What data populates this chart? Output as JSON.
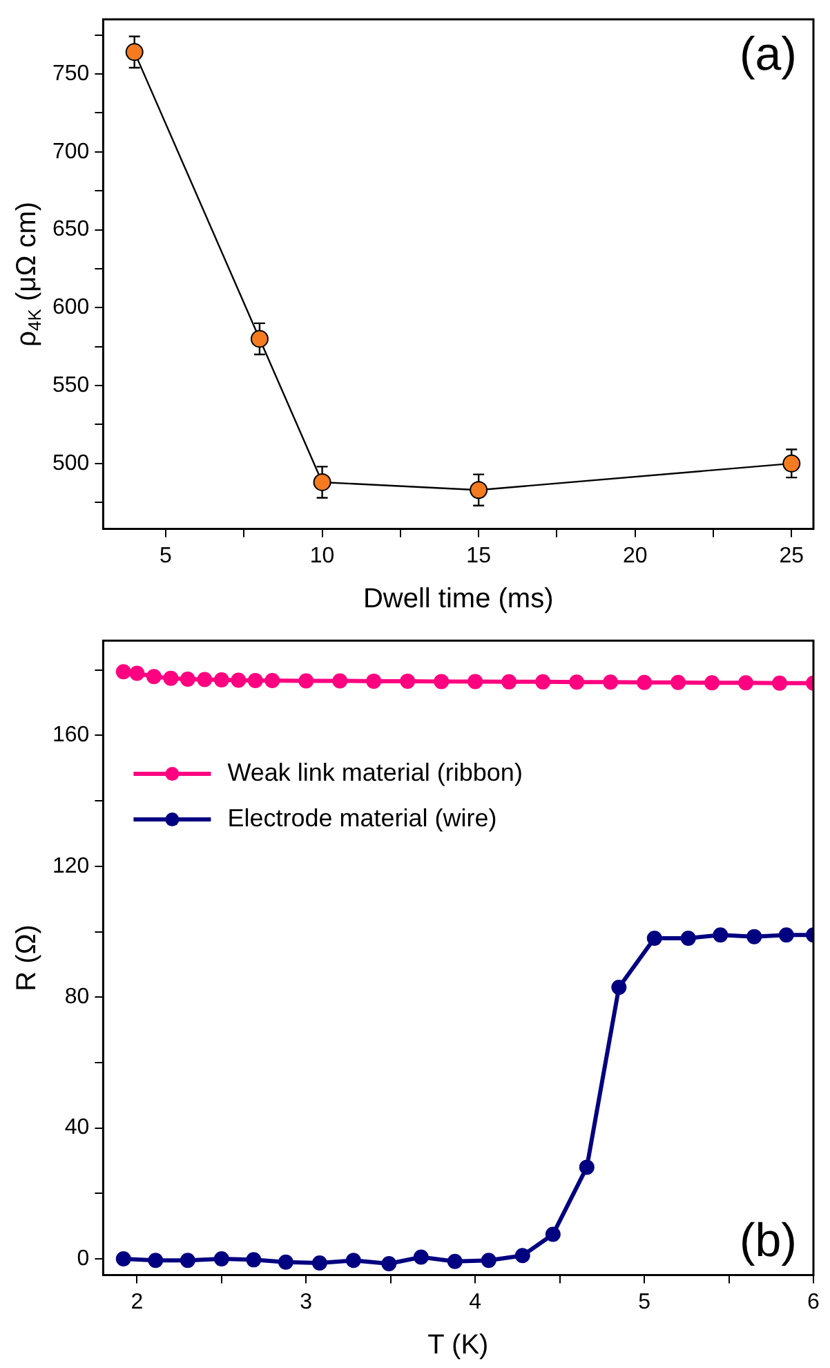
{
  "chart_data": [
    {
      "type": "line",
      "xlabel": "Dwell time (ms)",
      "ylabel": "ρ$_{4K}$ (μΩ cm)",
      "annotations": [
        "(a)"
      ],
      "x": [
        4,
        8,
        10,
        15,
        25
      ],
      "series": [
        {
          "color": "#f47b20",
          "values": [
            764,
            580,
            488,
            483,
            500
          ],
          "errors": [
            10,
            10,
            10,
            10,
            9
          ]
        }
      ],
      "xlim": [
        3,
        25.7
      ],
      "xticks": [
        5,
        {
          "value": 7.5,
          "label": null
        },
        10,
        {
          "value": 12.5,
          "label": null
        },
        15,
        {
          "value": 17.5,
          "label": null
        },
        20,
        {
          "value": 22.5,
          "label": null
        },
        25
      ],
      "ylim": [
        458,
        785
      ],
      "yticks": [
        {
          "value": 475,
          "label": null
        },
        500,
        {
          "value": 525,
          "label": null
        },
        550,
        {
          "value": 575,
          "label": null
        },
        600,
        {
          "value": 625,
          "label": null
        },
        650,
        {
          "value": 675,
          "label": null
        },
        700,
        {
          "value": 725,
          "label": null
        },
        750,
        {
          "value": 775,
          "label": null
        }
      ],
      "marker": "circle",
      "line_style": "solid",
      "grid": false,
      "legend": false
    },
    {
      "type": "line",
      "xlabel": "T (K)",
      "ylabel": "R (Ω)",
      "annotations": [
        "(b)"
      ],
      "series": [
        {
          "name": "Weak link material (ribbon)",
          "color": "#ff0080",
          "x": [
            1.92,
            2.0,
            2.1,
            2.2,
            2.3,
            2.4,
            2.5,
            2.6,
            2.7,
            2.8,
            3.0,
            3.2,
            3.4,
            3.6,
            3.8,
            4.0,
            4.2,
            4.4,
            4.6,
            4.8,
            5.0,
            5.2,
            5.4,
            5.6,
            5.8,
            6.0
          ],
          "values": [
            179.5,
            179.0,
            178.0,
            177.5,
            177.2,
            177.1,
            177.0,
            176.9,
            176.8,
            176.8,
            176.7,
            176.7,
            176.6,
            176.6,
            176.5,
            176.5,
            176.4,
            176.4,
            176.3,
            176.3,
            176.2,
            176.2,
            176.1,
            176.1,
            176.0,
            176.0
          ]
        },
        {
          "name": "Electrode material (wire)",
          "color": "#000080",
          "x": [
            1.92,
            2.11,
            2.3,
            2.5,
            2.69,
            2.88,
            3.08,
            3.28,
            3.49,
            3.68,
            3.88,
            4.08,
            4.28,
            4.46,
            4.66,
            4.85,
            5.06,
            5.26,
            5.45,
            5.65,
            5.84,
            6.0
          ],
          "values": [
            0,
            -0.5,
            -0.5,
            0,
            -0.3,
            -1,
            -1.3,
            -0.5,
            -1.5,
            0.5,
            -0.8,
            -0.5,
            1,
            7.5,
            28,
            83,
            98,
            98,
            99,
            98.5,
            99,
            99
          ]
        }
      ],
      "xlim": [
        1.8,
        6
      ],
      "xticks": [
        2,
        {
          "value": 2.5,
          "label": null
        },
        3,
        {
          "value": 3.5,
          "label": null
        },
        4,
        {
          "value": 4.5,
          "label": null
        },
        5,
        {
          "value": 5.5,
          "label": null
        },
        6
      ],
      "ylim": [
        -5,
        189
      ],
      "yticks": [
        0,
        {
          "value": 20,
          "label": null
        },
        40,
        {
          "value": 60,
          "label": null
        },
        80,
        {
          "value": 100,
          "label": null
        },
        120,
        {
          "value": 140,
          "label": null
        },
        160,
        {
          "value": 180,
          "label": null
        }
      ],
      "marker": "circle",
      "line_style": "solid",
      "grid": false,
      "legend": "top left"
    }
  ]
}
